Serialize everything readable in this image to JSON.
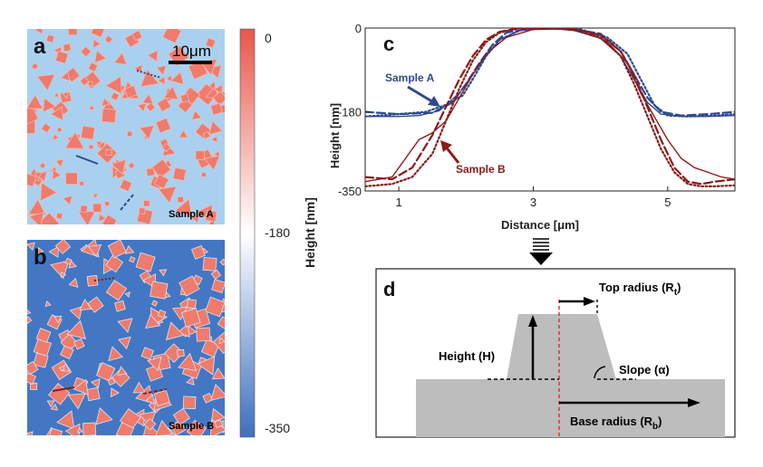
{
  "panels": {
    "a": {
      "letter": "a",
      "sample_label": "Sample A",
      "scalebar_label": "10μm",
      "background_color": "#a9d1ef",
      "particle_color": "#ee7b6c"
    },
    "b": {
      "letter": "b",
      "sample_label": "Sample B",
      "background_color": "#4477c3",
      "particle_color": "#ee7b6c"
    }
  },
  "colorbar": {
    "tick_labels": [
      "0",
      "-180",
      "-350"
    ],
    "tick_values": [
      0,
      -180,
      -350
    ],
    "axis_label": "Height [nm]",
    "colors": {
      "top": "#e8574a",
      "middle": "#ffffff",
      "bottom": "#3e6fbf"
    }
  },
  "chart_data": {
    "type": "line",
    "panel_letter": "c",
    "xlabel": "Distance [μm]",
    "ylabel": "Height [nm]",
    "xlim": [
      0.5,
      6
    ],
    "ylim": [
      -350,
      0
    ],
    "x_ticks": [
      1,
      3,
      5
    ],
    "y_ticks": [
      0,
      -180,
      -350
    ],
    "y_tick_labels": [
      "0",
      "-180",
      "-350"
    ],
    "annotations": [
      {
        "text": "Sample A",
        "color": "#2e4a8c"
      },
      {
        "text": "Sample B",
        "color": "#8b1a1a"
      }
    ],
    "series": [
      {
        "sample": "A",
        "style": "solid",
        "color": "#2e4a8c",
        "x": [
          0.5,
          1.0,
          1.3,
          1.6,
          1.9,
          2.1,
          2.3,
          2.5,
          2.8,
          3.2,
          3.6,
          4.0,
          4.3,
          4.5,
          4.7,
          4.9,
          5.2,
          5.6,
          6.0
        ],
        "y": [
          -190,
          -190,
          -188,
          -178,
          -140,
          -100,
          -60,
          -25,
          -5,
          0,
          -5,
          -22,
          -60,
          -110,
          -160,
          -185,
          -190,
          -190,
          -188
        ]
      },
      {
        "sample": "A",
        "style": "dashed",
        "color": "#2e4a8c",
        "x": [
          0.5,
          1.0,
          1.5,
          1.8,
          2.0,
          2.2,
          2.4,
          2.6,
          3.0,
          3.5,
          4.0,
          4.3,
          4.5,
          4.7,
          4.9,
          5.2,
          5.6,
          6.0
        ],
        "y": [
          -180,
          -185,
          -182,
          -160,
          -120,
          -75,
          -35,
          -10,
          0,
          0,
          -12,
          -50,
          -100,
          -150,
          -180,
          -188,
          -185,
          -180
        ]
      },
      {
        "sample": "A",
        "style": "dotted",
        "color": "#2e4a8c",
        "x": [
          0.5,
          1.0,
          1.4,
          1.7,
          1.95,
          2.1,
          2.3,
          2.5,
          2.8,
          3.2,
          3.7,
          4.1,
          4.4,
          4.6,
          4.8,
          5.0,
          5.3,
          5.7,
          6.0
        ],
        "y": [
          -190,
          -185,
          -180,
          -165,
          -145,
          -110,
          -60,
          -25,
          -5,
          0,
          -3,
          -20,
          -55,
          -110,
          -165,
          -188,
          -190,
          -188,
          -185
        ]
      },
      {
        "sample": "B",
        "style": "solid",
        "color": "#8b1a1a",
        "x": [
          0.5,
          0.9,
          1.1,
          1.3,
          1.5,
          1.7,
          1.9,
          2.1,
          2.3,
          2.6,
          3.0,
          3.4,
          3.8,
          4.1,
          4.4,
          4.6,
          4.8,
          5.0,
          5.2,
          5.4,
          5.6,
          5.8,
          6.0
        ],
        "y": [
          -330,
          -320,
          -280,
          -240,
          -225,
          -200,
          -150,
          -100,
          -55,
          -20,
          -3,
          -2,
          -8,
          -30,
          -75,
          -140,
          -190,
          -240,
          -280,
          -300,
          -310,
          -320,
          -325
        ]
      },
      {
        "sample": "B",
        "style": "dashed",
        "color": "#8b1a1a",
        "x": [
          0.5,
          0.9,
          1.2,
          1.5,
          1.7,
          1.9,
          2.1,
          2.3,
          2.5,
          2.8,
          3.2,
          3.6,
          4.0,
          4.3,
          4.5,
          4.7,
          4.9,
          5.1,
          5.3,
          5.5,
          5.7,
          6.0
        ],
        "y": [
          -320,
          -325,
          -300,
          -230,
          -170,
          -110,
          -60,
          -25,
          -8,
          0,
          0,
          -2,
          -15,
          -50,
          -100,
          -170,
          -240,
          -300,
          -330,
          -335,
          -330,
          -325
        ]
      },
      {
        "sample": "B",
        "style": "dotted",
        "color": "#8b1a1a",
        "x": [
          0.5,
          0.9,
          1.2,
          1.5,
          1.7,
          1.9,
          2.1,
          2.3,
          2.5,
          2.8,
          3.2,
          3.6,
          4.0,
          4.3,
          4.5,
          4.7,
          4.9,
          5.1,
          5.3,
          5.5,
          5.7,
          6.0
        ],
        "y": [
          -340,
          -335,
          -320,
          -270,
          -200,
          -130,
          -70,
          -30,
          -10,
          0,
          0,
          -3,
          -20,
          -60,
          -120,
          -190,
          -260,
          -310,
          -335,
          -340,
          -340,
          -338
        ]
      }
    ]
  },
  "arrow_glyph": "▼",
  "panel_d": {
    "letter": "d",
    "labels": {
      "top_radius_main": "Top radius (R",
      "top_radius_sub": "t",
      "height": "Height (H)",
      "slope": "Slope (α)",
      "base_radius_main": "Base radius (R",
      "base_radius_sub": "b",
      "close_paren": ")"
    },
    "shape_color": "#bdbdbd",
    "axis_line_color": "#d42f2f"
  }
}
